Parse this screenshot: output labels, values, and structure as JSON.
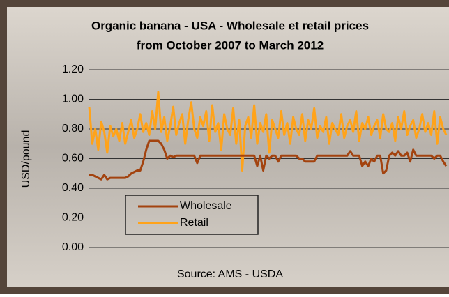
{
  "chart_data": {
    "type": "line",
    "title": "Organic banana - USA - Wholesale et retail prices",
    "subtitle": "from October 2007 to March 2012",
    "ylabel": "USD/pound",
    "source": "Source: AMS - USDA",
    "ylim": [
      0,
      1.2
    ],
    "yticks": [
      {
        "value": 0,
        "label": "0.00"
      },
      {
        "value": 0.2,
        "label": "0.20"
      },
      {
        "value": 0.4,
        "label": "0.40"
      },
      {
        "value": 0.6,
        "label": "0.60"
      },
      {
        "value": 0.8,
        "label": "0.80"
      },
      {
        "value": 1.0,
        "label": "1.00"
      },
      {
        "value": 1.2,
        "label": "1.20"
      }
    ],
    "grid": true,
    "legend": "bottom-left",
    "series": [
      {
        "name": "Wholesale",
        "color": "#a3430f",
        "values": [
          0.49,
          0.49,
          0.48,
          0.47,
          0.46,
          0.49,
          0.46,
          0.47,
          0.47,
          0.47,
          0.47,
          0.47,
          0.47,
          0.48,
          0.5,
          0.51,
          0.52,
          0.52,
          0.58,
          0.66,
          0.72,
          0.72,
          0.72,
          0.72,
          0.7,
          0.66,
          0.6,
          0.62,
          0.61,
          0.62,
          0.62,
          0.62,
          0.62,
          0.62,
          0.62,
          0.62,
          0.57,
          0.62,
          0.62,
          0.62,
          0.62,
          0.62,
          0.62,
          0.62,
          0.62,
          0.62,
          0.62,
          0.62,
          0.62,
          0.62,
          0.62,
          0.62,
          0.62,
          0.62,
          0.62,
          0.62,
          0.55,
          0.62,
          0.52,
          0.62,
          0.6,
          0.62,
          0.62,
          0.58,
          0.62,
          0.62,
          0.62,
          0.62,
          0.62,
          0.62,
          0.6,
          0.6,
          0.58,
          0.58,
          0.58,
          0.58,
          0.62,
          0.62,
          0.62,
          0.62,
          0.62,
          0.62,
          0.62,
          0.62,
          0.62,
          0.62,
          0.62,
          0.65,
          0.62,
          0.62,
          0.62,
          0.55,
          0.58,
          0.55,
          0.6,
          0.58,
          0.62,
          0.62,
          0.5,
          0.52,
          0.62,
          0.64,
          0.62,
          0.65,
          0.62,
          0.62,
          0.64,
          0.58,
          0.66,
          0.62,
          0.62,
          0.62,
          0.62,
          0.62,
          0.62,
          0.6,
          0.62,
          0.62,
          0.58,
          0.55
        ]
      },
      {
        "name": "Retail",
        "color": "#ffa31a",
        "values": [
          0.95,
          0.7,
          0.8,
          0.66,
          0.85,
          0.78,
          0.64,
          0.82,
          0.75,
          0.8,
          0.72,
          0.84,
          0.7,
          0.78,
          0.86,
          0.74,
          0.8,
          0.9,
          0.78,
          0.84,
          0.76,
          0.92,
          0.8,
          1.05,
          0.78,
          0.88,
          0.72,
          0.82,
          0.95,
          0.76,
          0.84,
          0.9,
          0.7,
          0.86,
          0.98,
          0.8,
          0.74,
          0.88,
          0.82,
          0.92,
          0.72,
          0.96,
          0.78,
          0.84,
          0.66,
          0.9,
          0.8,
          0.76,
          0.94,
          0.7,
          0.86,
          0.52,
          0.82,
          0.88,
          0.74,
          0.96,
          0.7,
          0.84,
          0.78,
          0.9,
          0.64,
          0.86,
          0.8,
          0.74,
          0.92,
          0.76,
          0.84,
          0.7,
          0.88,
          0.8,
          0.76,
          0.9,
          0.72,
          0.86,
          0.8,
          0.94,
          0.74,
          0.82,
          0.78,
          0.88,
          0.7,
          0.84,
          0.8,
          0.76,
          0.9,
          0.74,
          0.82,
          0.86,
          0.78,
          0.92,
          0.72,
          0.84,
          0.8,
          0.88,
          0.76,
          0.82,
          0.86,
          0.74,
          0.9,
          0.8,
          0.78,
          0.84,
          0.72,
          0.88,
          0.8,
          0.92,
          0.76,
          0.82,
          0.86,
          0.74,
          0.8,
          0.9,
          0.78,
          0.84,
          0.76,
          0.92,
          0.7,
          0.88,
          0.8,
          0.76
        ]
      }
    ]
  }
}
